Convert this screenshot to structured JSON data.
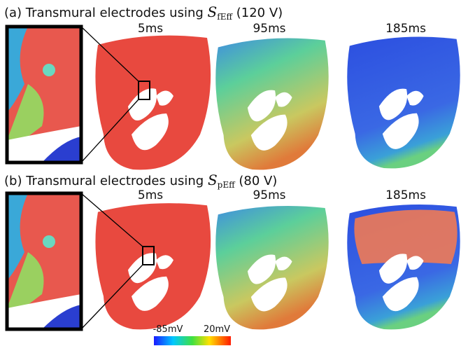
{
  "panels": [
    {
      "label": "(a) Transmural electrodes using",
      "symbol": "S",
      "subscript": "fEff",
      "voltage": "(120 V)",
      "times": [
        "5ms",
        "95ms",
        "185ms"
      ]
    },
    {
      "label": "(b) Transmural electrodes using",
      "symbol": "S",
      "subscript": "pEff",
      "voltage": "(80 V)",
      "times": [
        "5ms",
        "95ms",
        "185ms"
      ]
    }
  ],
  "colorbar": {
    "min_label": "-85mV",
    "max_label": "20mV"
  }
}
